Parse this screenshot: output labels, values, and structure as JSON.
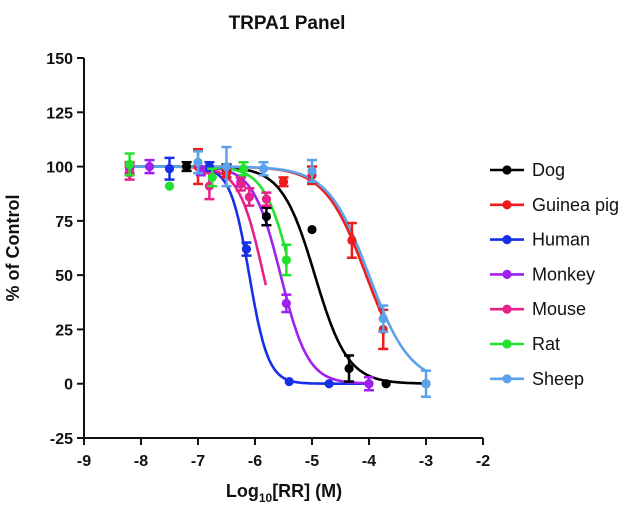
{
  "chart_data": {
    "type": "scatter",
    "title": "TRPA1 Panel",
    "xlabel": "Log10[RR] (M)",
    "xlabel_parts": {
      "pre": "Log",
      "sub": "10",
      "post": "[RR] (M)"
    },
    "ylabel": "% of Control",
    "xlim": [
      -9,
      -2
    ],
    "ylim": [
      -25,
      150
    ],
    "xticks": [
      "-9",
      "-8",
      "-7",
      "-6",
      "-5",
      "-4",
      "-3",
      "-2"
    ],
    "yticks": [
      "-25",
      "0",
      "25",
      "50",
      "75",
      "100",
      "125",
      "150"
    ],
    "grid": false,
    "legend_position": "right",
    "series": [
      {
        "name": "Dog",
        "color": "#000000",
        "ic50_log": -4.95,
        "hill": 1.5,
        "points": [
          {
            "x": -7.2,
            "y": 100,
            "err": 2
          },
          {
            "x": -6.5,
            "y": 98,
            "err": 3
          },
          {
            "x": -5.8,
            "y": 77,
            "err": 4
          },
          {
            "x": -5.0,
            "y": 71,
            "err": 0
          },
          {
            "x": -4.35,
            "y": 7,
            "err": 6
          },
          {
            "x": -3.7,
            "y": 0,
            "err": 0
          },
          {
            "x": -3.0,
            "y": 0,
            "err": 0
          }
        ]
      },
      {
        "name": "Guinea pig",
        "color": "#ee1c1c",
        "ic50_log": -4.05,
        "hill": 1.2,
        "points": [
          {
            "x": -8.2,
            "y": 99,
            "err": 3
          },
          {
            "x": -7.0,
            "y": 100,
            "err": 8
          },
          {
            "x": -6.5,
            "y": 97,
            "err": 2
          },
          {
            "x": -5.5,
            "y": 93,
            "err": 2
          },
          {
            "x": -5.0,
            "y": 96,
            "err": 4
          },
          {
            "x": -4.3,
            "y": 66,
            "err": 8
          },
          {
            "x": -3.75,
            "y": 25,
            "err": 9
          }
        ]
      },
      {
        "name": "Human",
        "color": "#1530e6",
        "ic50_log": -6.1,
        "hill": 2.6,
        "points": [
          {
            "x": -7.5,
            "y": 99,
            "err": 5
          },
          {
            "x": -6.8,
            "y": 100,
            "err": 2
          },
          {
            "x": -6.15,
            "y": 62,
            "err": 3
          },
          {
            "x": -5.4,
            "y": 1,
            "err": 0
          },
          {
            "x": -4.7,
            "y": 0,
            "err": 0
          },
          {
            "x": -4.0,
            "y": 0,
            "err": 0
          }
        ]
      },
      {
        "name": "Monkey",
        "color": "#a020f0",
        "ic50_log": -5.55,
        "hill": 1.8,
        "points": [
          {
            "x": -8.2,
            "y": 99,
            "err": 2
          },
          {
            "x": -7.85,
            "y": 100,
            "err": 3
          },
          {
            "x": -6.95,
            "y": 98,
            "err": 2
          },
          {
            "x": -6.25,
            "y": 93,
            "err": 2
          },
          {
            "x": -5.45,
            "y": 37,
            "err": 4
          },
          {
            "x": -4.0,
            "y": 0,
            "err": 3
          }
        ]
      },
      {
        "name": "Mouse",
        "color": "#e8208a",
        "ic50_log": -5.85,
        "hill": 2.0,
        "points": [
          {
            "x": -8.2,
            "y": 97,
            "err": 3
          },
          {
            "x": -6.8,
            "y": 91,
            "err": 6
          },
          {
            "x": -6.25,
            "y": 92,
            "err": 3
          },
          {
            "x": -6.1,
            "y": 86,
            "err": 4
          },
          {
            "x": -5.8,
            "y": 85,
            "err": 3
          }
        ]
      },
      {
        "name": "Rat",
        "color": "#22e22e",
        "ic50_log": -5.35,
        "hill": 1.8,
        "points": [
          {
            "x": -8.2,
            "y": 101,
            "err": 5
          },
          {
            "x": -7.5,
            "y": 91,
            "err": 0
          },
          {
            "x": -6.75,
            "y": 95,
            "err": 4
          },
          {
            "x": -6.2,
            "y": 99,
            "err": 3
          },
          {
            "x": -5.45,
            "y": 57,
            "err": 7
          }
        ]
      },
      {
        "name": "Sheep",
        "color": "#5aa2ea",
        "ic50_log": -4.0,
        "hill": 1.2,
        "points": [
          {
            "x": -7.0,
            "y": 102,
            "err": 5
          },
          {
            "x": -6.5,
            "y": 100,
            "err": 9
          },
          {
            "x": -5.85,
            "y": 99,
            "err": 3
          },
          {
            "x": -5.0,
            "y": 98,
            "err": 5
          },
          {
            "x": -3.75,
            "y": 30,
            "err": 6
          },
          {
            "x": -3.0,
            "y": 0,
            "err": 6
          }
        ]
      }
    ]
  }
}
